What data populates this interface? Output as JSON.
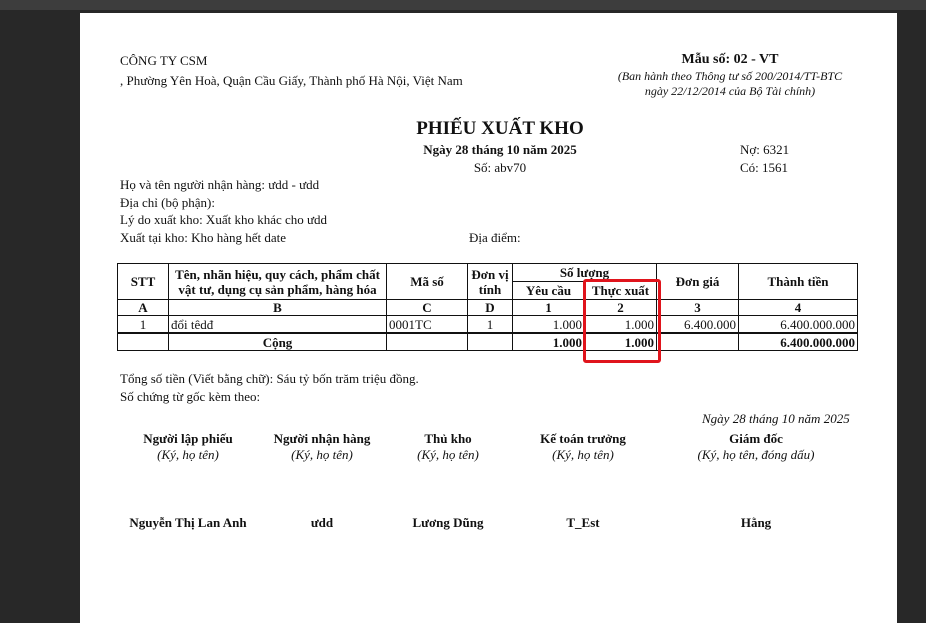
{
  "company": {
    "name": "CÔNG TY CSM",
    "address": ", Phường Yên Hoà, Quận Cầu Giấy, Thành phố Hà Nội, Việt Nam"
  },
  "form": {
    "code": "Mẫu số: 02 - VT",
    "issued_line1": "(Ban hành theo Thông tư số 200/2014/TT-BTC",
    "issued_line2": "ngày 22/12/2014 của Bộ Tài chính)"
  },
  "title": "PHIẾU XUẤT KHO",
  "date": "Ngày 28 tháng 10 năm 2025",
  "number": "Số: abv70",
  "debit": "Nợ: 6321",
  "credit": "Có: 1561",
  "info": {
    "receiver": "Họ và tên người nhận hàng: ưdd - ưdd",
    "address": "Địa chỉ (bộ phận):",
    "reason": "Lý do xuất kho: Xuất kho khác cho ưdd",
    "warehouse": "Xuất tại kho: Kho hàng hết date",
    "location": "Địa điểm:"
  },
  "table": {
    "headers": {
      "stt": "STT",
      "name_line1": "Tên, nhãn hiệu, quy cách, phẩm chất",
      "name_line2": "vật tư, dụng cụ sản phẩm, hàng hóa",
      "code": "Mã số",
      "unit_line1": "Đơn vị",
      "unit_line2": "tính",
      "quantity": "Số lượng",
      "requested": "Yêu cầu",
      "actual": "Thực xuất",
      "price": "Đơn giá",
      "amount": "Thành tiền"
    },
    "letters": [
      "A",
      "B",
      "C",
      "D",
      "1",
      "2",
      "3",
      "4"
    ],
    "rows": [
      {
        "stt": "1",
        "name": "đổi têdđ",
        "code": "0001TC",
        "unit": "1",
        "requested": "1.000",
        "actual": "1.000",
        "price": "6.400.000",
        "amount": "6.400.000.000"
      }
    ],
    "total": {
      "label": "Cộng",
      "requested": "1.000",
      "actual": "1.000",
      "amount": "6.400.000.000"
    },
    "highlight_color": "#e0141c"
  },
  "total_words": "Tổng số tiền (Viết bằng chữ): Sáu tỷ bốn trăm triệu đồng.",
  "attached": "Số chứng từ gốc kèm theo:",
  "sign_date": "Ngày 28 tháng 10 năm 2025",
  "signatures": [
    {
      "role": "Người lập phiếu",
      "note": "(Ký, họ tên)",
      "name": "Nguyễn Thị Lan Anh"
    },
    {
      "role": "Người nhận hàng",
      "note": "(Ký, họ tên)",
      "name": "ưdd"
    },
    {
      "role": "Thủ kho",
      "note": "(Ký, họ tên)",
      "name": "Lương Dũng"
    },
    {
      "role": "Kế toán trưởng",
      "note": "(Ký, họ tên)",
      "name": "T_Est"
    },
    {
      "role": "Giám đốc",
      "note": "(Ký, họ tên, đóng dấu)",
      "name": "Hằng"
    }
  ]
}
